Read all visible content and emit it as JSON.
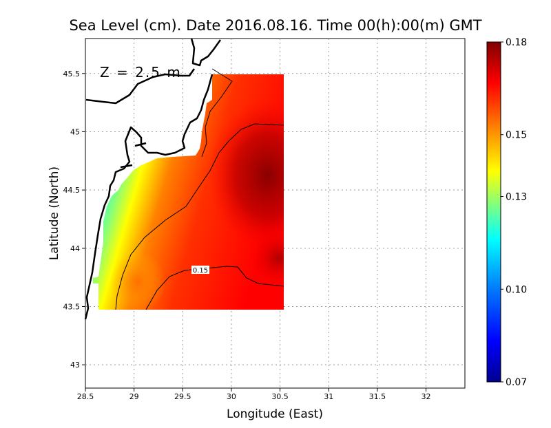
{
  "title": "Sea Level (cm). Date 2016.08.16. Time 00(h):00(m) GMT",
  "depth_label": "Z = 2.5 m",
  "x_axis": {
    "label": "Longitude (East)",
    "range": [
      28.5,
      32.4
    ],
    "ticks": [
      "28.5",
      "29",
      "29.5",
      "30",
      "30.5",
      "31",
      "31.5",
      "32"
    ],
    "tick_values": [
      28.5,
      29,
      29.5,
      30,
      30.5,
      31,
      31.5,
      32
    ]
  },
  "y_axis": {
    "label": "Latitude (North)",
    "range": [
      42.8,
      45.8
    ],
    "ticks": [
      "43",
      "43.5",
      "44",
      "44.5",
      "45",
      "45.5"
    ],
    "tick_values": [
      43,
      43.5,
      44,
      44.5,
      45,
      45.5
    ]
  },
  "grid": "dotted",
  "colorbar": {
    "range": [
      0.07,
      0.18
    ],
    "tick_labels": [
      "0.18",
      "0.15",
      "0.13",
      "0.10",
      "0.07"
    ],
    "tick_values": [
      0.18,
      0.15,
      0.13,
      0.1,
      0.07
    ],
    "colors": [
      "#00008f",
      "#0000ff",
      "#0080ff",
      "#00ffff",
      "#80ff80",
      "#ffff00",
      "#ff8000",
      "#ff0000",
      "#800000"
    ]
  },
  "contour_label": "0.15",
  "map_data": {
    "field": "sea level",
    "units": "cm",
    "domain_lon": [
      28.63,
      30.52
    ],
    "domain_lat": [
      43.48,
      45.5
    ],
    "features": [
      "Black Sea coastline",
      "Danube delta"
    ]
  }
}
